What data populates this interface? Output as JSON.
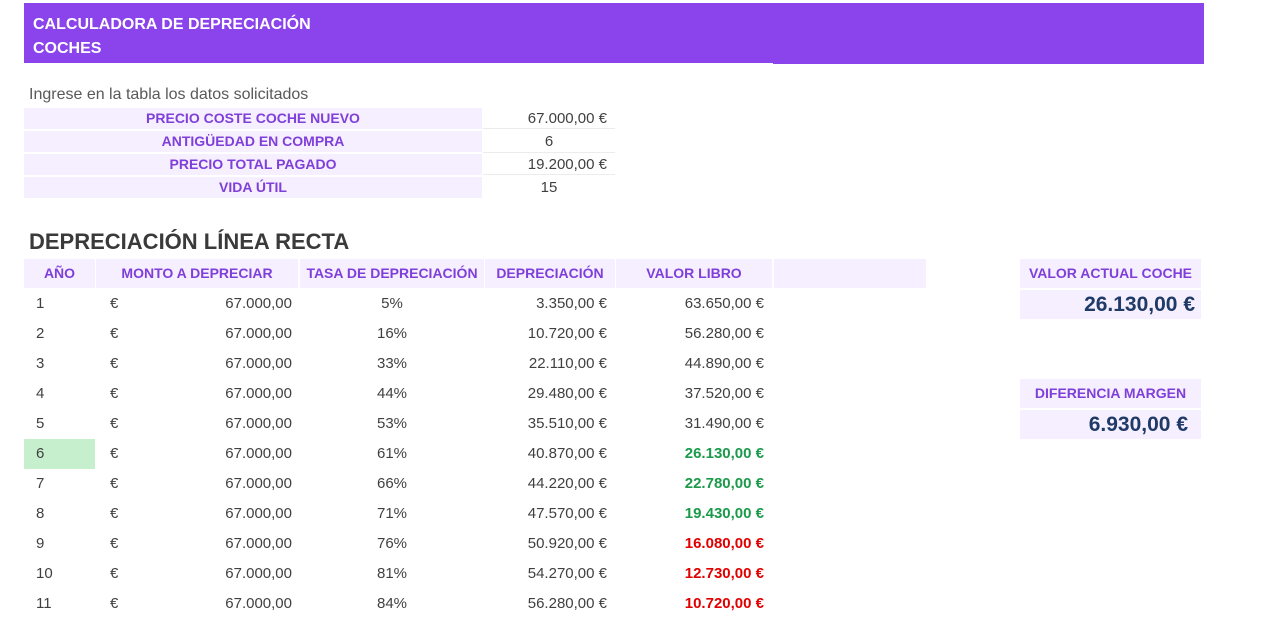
{
  "banner": {
    "line1": "CALCULADORA DE DEPRECIACIÓN",
    "line2": "COCHES",
    "color": "#8b44ec"
  },
  "instruction": "Ingrese en la tabla los datos solicitados",
  "params": [
    {
      "label": "PRECIO COSTE COCHE NUEVO",
      "value": "67.000,00 €"
    },
    {
      "label": "ANTIGÜEDAD EN COMPRA",
      "value": "6"
    },
    {
      "label": "PRECIO TOTAL PAGADO",
      "value": "19.200,00 €"
    },
    {
      "label": "VIDA ÚTIL",
      "value": "15"
    }
  ],
  "section_title": "DEPRECIACIÓN LÍNEA RECTA",
  "table": {
    "headers": [
      "AÑO",
      "MONTO A DEPRECIAR",
      "TASA DE DEPRECIACIÓN",
      "DEPRECIACIÓN",
      "VALOR LIBRO"
    ],
    "rows": [
      {
        "year": "1",
        "currency": "€",
        "amount": "67.000,00",
        "rate": "5%",
        "depreciation": "3.350,00 €",
        "book": "63.650,00 €",
        "book_status": "normal"
      },
      {
        "year": "2",
        "currency": "€",
        "amount": "67.000,00",
        "rate": "16%",
        "depreciation": "10.720,00 €",
        "book": "56.280,00 €",
        "book_status": "normal"
      },
      {
        "year": "3",
        "currency": "€",
        "amount": "67.000,00",
        "rate": "33%",
        "depreciation": "22.110,00 €",
        "book": "44.890,00 €",
        "book_status": "normal"
      },
      {
        "year": "4",
        "currency": "€",
        "amount": "67.000,00",
        "rate": "44%",
        "depreciation": "29.480,00 €",
        "book": "37.520,00 €",
        "book_status": "normal"
      },
      {
        "year": "5",
        "currency": "€",
        "amount": "67.000,00",
        "rate": "53%",
        "depreciation": "35.510,00 €",
        "book": "31.490,00 €",
        "book_status": "normal"
      },
      {
        "year": "6",
        "currency": "€",
        "amount": "67.000,00",
        "rate": "61%",
        "depreciation": "40.870,00 €",
        "book": "26.130,00 €",
        "book_status": "green",
        "highlight": true
      },
      {
        "year": "7",
        "currency": "€",
        "amount": "67.000,00",
        "rate": "66%",
        "depreciation": "44.220,00 €",
        "book": "22.780,00 €",
        "book_status": "green"
      },
      {
        "year": "8",
        "currency": "€",
        "amount": "67.000,00",
        "rate": "71%",
        "depreciation": "47.570,00 €",
        "book": "19.430,00 €",
        "book_status": "green"
      },
      {
        "year": "9",
        "currency": "€",
        "amount": "67.000,00",
        "rate": "76%",
        "depreciation": "50.920,00 €",
        "book": "16.080,00 €",
        "book_status": "red"
      },
      {
        "year": "10",
        "currency": "€",
        "amount": "67.000,00",
        "rate": "81%",
        "depreciation": "54.270,00 €",
        "book": "12.730,00 €",
        "book_status": "red"
      },
      {
        "year": "11",
        "currency": "€",
        "amount": "67.000,00",
        "rate": "84%",
        "depreciation": "56.280,00 €",
        "book": "10.720,00 €",
        "book_status": "red"
      }
    ]
  },
  "summary": {
    "current_value_label": "VALOR ACTUAL COCHE",
    "current_value": "26.130,00 €",
    "margin_label": "DIFERENCIA MARGEN",
    "margin_value": "6.930,00 €"
  },
  "colors": {
    "accent": "#8b44ec",
    "header_text": "#7f3fd9",
    "header_bg": "#f5efff",
    "green": "#1a9a4a",
    "red": "#e00000",
    "highlight": "#c6efce"
  }
}
